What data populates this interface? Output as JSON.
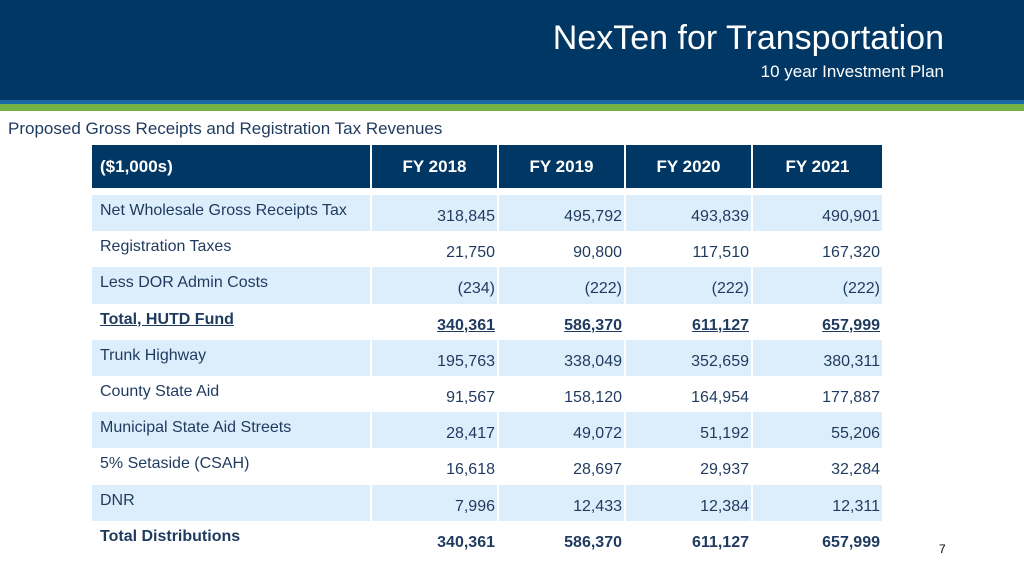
{
  "header": {
    "title": "NexTen for Transportation",
    "subtitle": "10 year Investment Plan"
  },
  "section_title": "Proposed Gross Receipts and Registration Tax Revenues",
  "table": {
    "columns": [
      "($1,000s)",
      "FY  2018",
      "FY 2019",
      "FY 2020",
      "FY 2021"
    ],
    "rows": [
      {
        "label": "Net Wholesale Gross Receipts Tax",
        "values": [
          "318,845",
          "495,792",
          "493,839",
          "490,901"
        ]
      },
      {
        "label": "Registration Taxes",
        "values": [
          "21,750",
          "90,800",
          "117,510",
          "167,320"
        ]
      },
      {
        "label": "Less DOR Admin Costs",
        "values": [
          "(234)",
          "(222)",
          "(222)",
          "(222)"
        ]
      },
      {
        "label": "Total, HUTD Fund",
        "values": [
          "340,361",
          "586,370",
          "611,127",
          "657,999"
        ]
      },
      {
        "label": "Trunk Highway",
        "values": [
          "195,763",
          "338,049",
          "352,659",
          "380,311"
        ]
      },
      {
        "label": "County State Aid",
        "values": [
          "91,567",
          "158,120",
          "164,954",
          "177,887"
        ]
      },
      {
        "label": "Municipal State Aid Streets",
        "values": [
          "28,417",
          "49,072",
          "51,192",
          "55,206"
        ]
      },
      {
        "label": "5% Setaside (CSAH)",
        "values": [
          "16,618",
          "28,697",
          "29,937",
          "32,284"
        ]
      },
      {
        "label": "DNR",
        "values": [
          "7,996",
          "12,433",
          "12,384",
          "12,311"
        ]
      },
      {
        "label": "Total Distributions",
        "values": [
          "340,361",
          "586,370",
          "611,127",
          "657,999"
        ]
      }
    ]
  },
  "page_number": "7",
  "colors": {
    "header_bg": "#003764",
    "accent_green": "#73b243",
    "row_shade": "#dceefb"
  }
}
